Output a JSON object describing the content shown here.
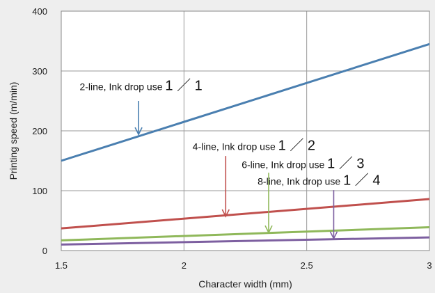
{
  "chart_data": {
    "type": "line",
    "xlabel": "Character width (mm)",
    "ylabel": "Printing speed (m/min)",
    "xlim": [
      1.5,
      3
    ],
    "ylim": [
      0,
      400
    ],
    "x_ticks": [
      "1.5",
      "2",
      "2.5",
      "3"
    ],
    "y_ticks": [
      "0",
      "100",
      "200",
      "300",
      "400"
    ],
    "x_tick_values": [
      1.5,
      2,
      2.5,
      3
    ],
    "y_tick_values": [
      0,
      100,
      200,
      300,
      400
    ],
    "grid": true,
    "series": [
      {
        "x": [
          1.5,
          3
        ],
        "y": [
          150,
          345
        ],
        "color": "#4a7fb0"
      },
      {
        "x": [
          1.5,
          3
        ],
        "y": [
          37,
          86
        ],
        "color": "#c0504d"
      },
      {
        "x": [
          1.5,
          3
        ],
        "y": [
          17,
          39
        ],
        "color": "#8fb85a"
      },
      {
        "x": [
          1.5,
          3
        ],
        "y": [
          10,
          22
        ],
        "color": "#7d5fa0"
      }
    ],
    "annotations": [
      {
        "text": "2-line, Ink drop use ",
        "fraction": "1 ／ 1",
        "color": "#4a7fb0",
        "label_x": 1.575,
        "label_y": 268,
        "arrow_x": 1.815,
        "arrow_from_y": 250,
        "arrow_to_y": 194
      },
      {
        "text": "4-line, Ink drop use ",
        "fraction": "1 ／ 2",
        "color": "#c0504d",
        "label_x": 2.035,
        "label_y": 168,
        "arrow_x": 2.17,
        "arrow_from_y": 158,
        "arrow_to_y": 57
      },
      {
        "text": "6-line, Ink drop use ",
        "fraction": "1 ／ 3",
        "color": "#8fb85a",
        "label_x": 2.235,
        "label_y": 138,
        "arrow_x": 2.345,
        "arrow_from_y": 130,
        "arrow_to_y": 30
      },
      {
        "text": "8-line, Ink drop use ",
        "fraction": "1 ／ 4",
        "color": "#7d5fa0",
        "label_x": 2.3,
        "label_y": 110,
        "arrow_x": 2.61,
        "arrow_from_y": 101,
        "arrow_to_y": 20
      }
    ]
  }
}
